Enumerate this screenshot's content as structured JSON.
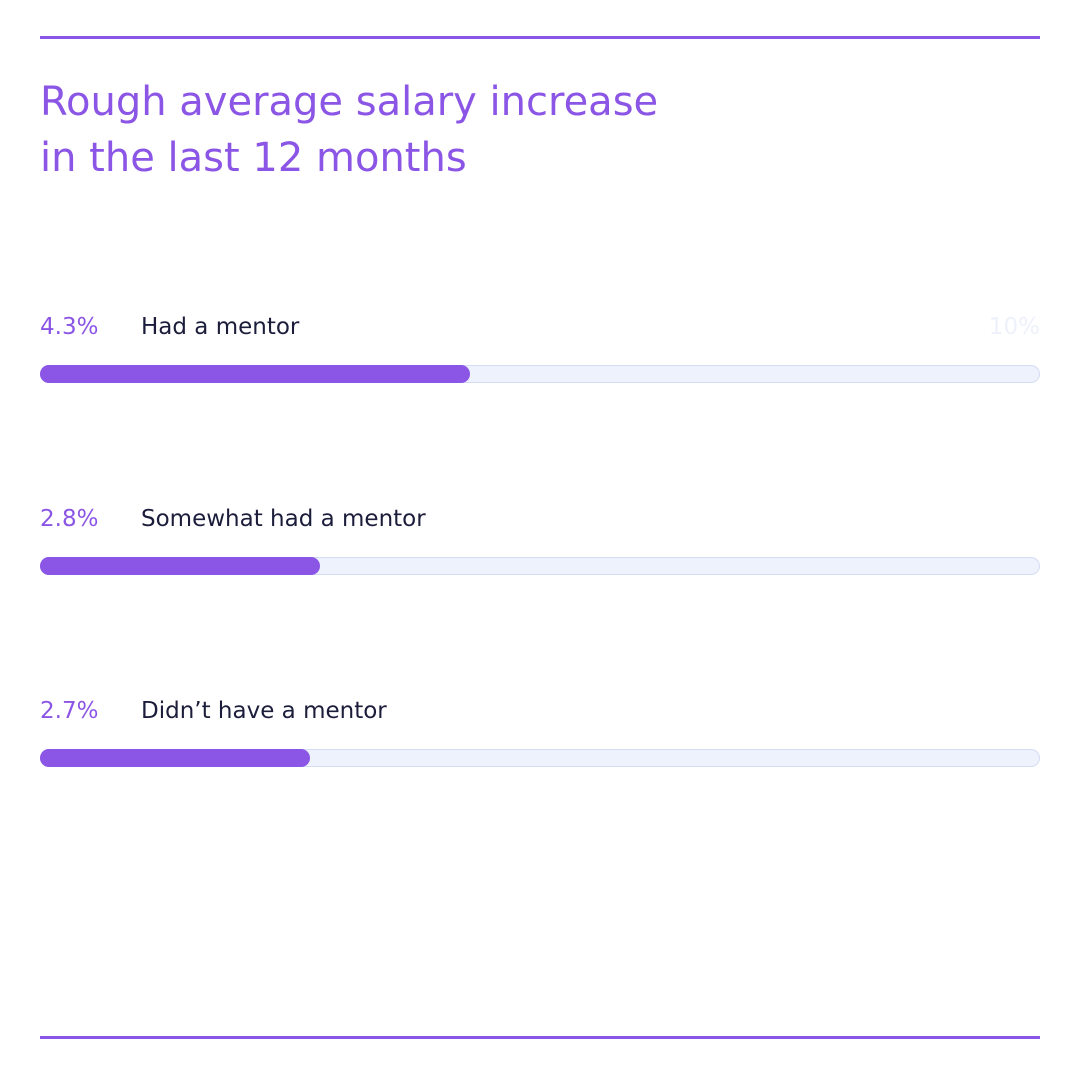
{
  "chart_data": {
    "type": "bar",
    "orientation": "horizontal",
    "title": "Rough average salary increase in the last 12 months",
    "categories": [
      "Had a mentor",
      "Somewhat had a mentor",
      "Didn’t have a mentor"
    ],
    "values": [
      4.3,
      2.8,
      2.7
    ],
    "value_labels": [
      "4.3%",
      "2.8%",
      "2.7%"
    ],
    "color": "#8b55e5",
    "xlim": [
      0,
      10
    ],
    "xticks": [
      {
        "value": 10,
        "label": "10%"
      }
    ]
  }
}
